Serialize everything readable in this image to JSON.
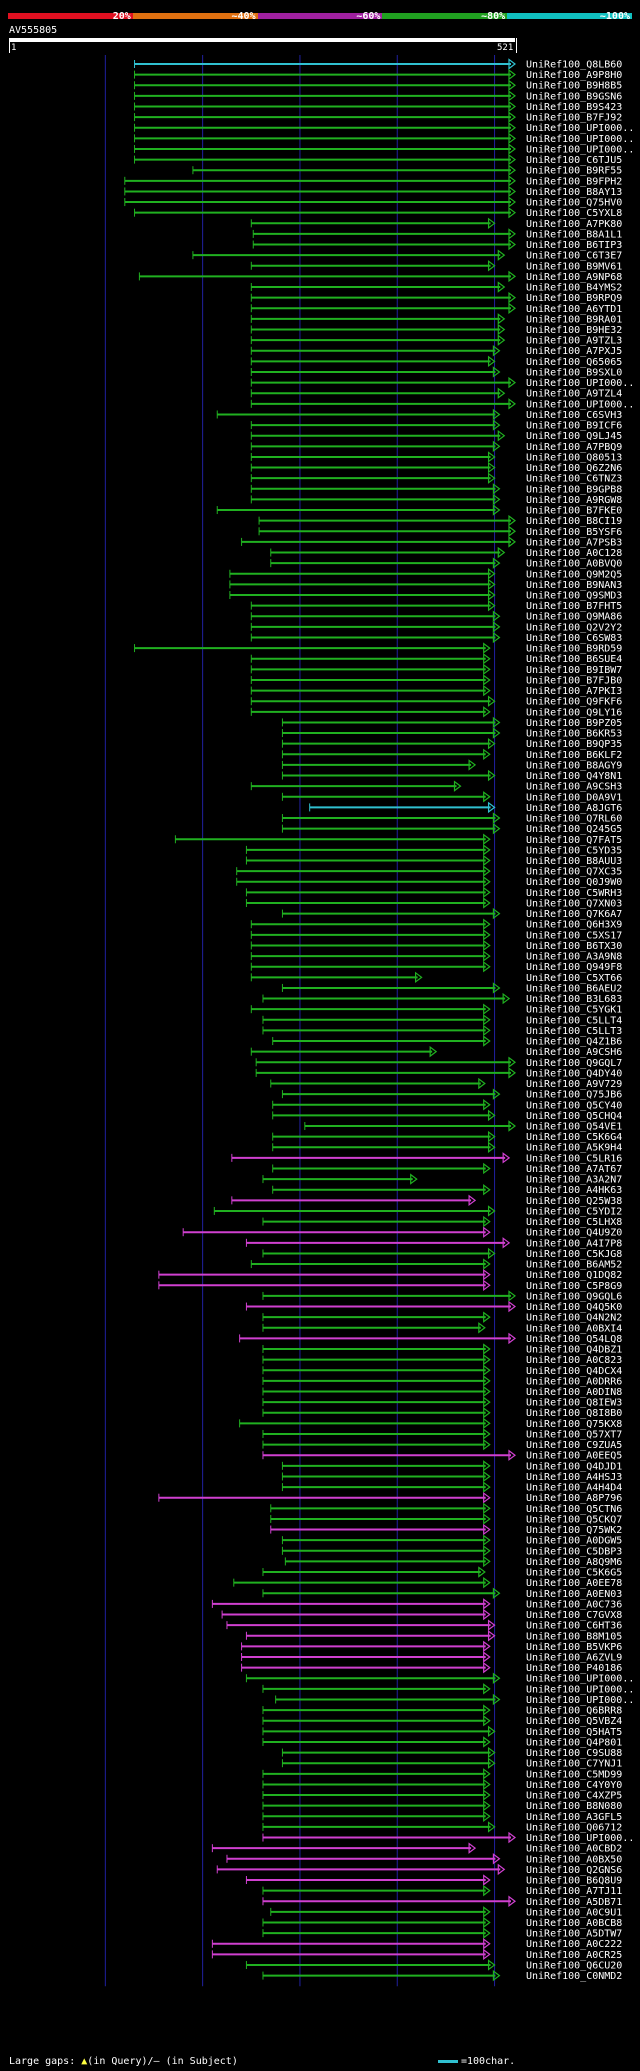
{
  "legend": {
    "labels": [
      "20%",
      "~40%",
      "~60%",
      "~80%",
      "~100%"
    ],
    "colors": [
      "#e01020",
      "#e07010",
      "#a020a0",
      "#20a020",
      "#10c0c0"
    ]
  },
  "query": {
    "name": "AV555805",
    "start": "1",
    "end": "521"
  },
  "footer": {
    "large_gaps": "Large gaps:",
    "gap_symbol": "▲",
    "in_query": "(in Query)/",
    "dash": "–",
    "in_subject": "(in Subject)",
    "scale": "=100char."
  },
  "colors": {
    "cyan": "#30c0d0",
    "green": "#20b020",
    "magenta": "#d040d0",
    "grid": "#2020a0"
  },
  "hits": [
    {
      "label": "UniRef100_Q8LB60",
      "s": 130,
      "e": 521,
      "c": "cyan"
    },
    {
      "label": "UniRef100_A9P8H0",
      "s": 130,
      "e": 521,
      "c": "green"
    },
    {
      "label": "UniRef100_B9H8B5",
      "s": 130,
      "e": 521,
      "c": "green"
    },
    {
      "label": "UniRef100_B9GSN6",
      "s": 130,
      "e": 521,
      "c": "green"
    },
    {
      "label": "UniRef100_B9S423",
      "s": 130,
      "e": 521,
      "c": "green"
    },
    {
      "label": "UniRef100_B7FJ92",
      "s": 130,
      "e": 521,
      "c": "green"
    },
    {
      "label": "UniRef100_UPI000..",
      "s": 130,
      "e": 521,
      "c": "green"
    },
    {
      "label": "UniRef100_UPI000..",
      "s": 130,
      "e": 521,
      "c": "green"
    },
    {
      "label": "UniRef100_UPI000..",
      "s": 130,
      "e": 521,
      "c": "green"
    },
    {
      "label": "UniRef100_C6TJU5",
      "s": 130,
      "e": 521,
      "c": "green"
    },
    {
      "label": "UniRef100_B9RF55",
      "s": 190,
      "e": 521,
      "c": "green"
    },
    {
      "label": "UniRef100_B9FPH2",
      "s": 120,
      "e": 521,
      "c": "green"
    },
    {
      "label": "UniRef100_B8AY13",
      "s": 120,
      "e": 521,
      "c": "green"
    },
    {
      "label": "UniRef100_Q75HV0",
      "s": 120,
      "e": 521,
      "c": "green"
    },
    {
      "label": "UniRef100_C5YXL8",
      "s": 130,
      "e": 521,
      "c": "green"
    },
    {
      "label": "UniRef100_A7PK80",
      "s": 250,
      "e": 500,
      "c": "green"
    },
    {
      "label": "UniRef100_B8A1L1",
      "s": 252,
      "e": 521,
      "c": "green"
    },
    {
      "label": "UniRef100_B6TIP3",
      "s": 252,
      "e": 521,
      "c": "green"
    },
    {
      "label": "UniRef100_C6T3E7",
      "s": 190,
      "e": 510,
      "c": "green"
    },
    {
      "label": "UniRef100_B9MV61",
      "s": 250,
      "e": 500,
      "c": "green"
    },
    {
      "label": "UniRef100_A9NP68",
      "s": 135,
      "e": 521,
      "c": "green"
    },
    {
      "label": "UniRef100_B4YMS2",
      "s": 250,
      "e": 510,
      "c": "green"
    },
    {
      "label": "UniRef100_B9RPQ9",
      "s": 250,
      "e": 521,
      "c": "green"
    },
    {
      "label": "UniRef100_A6YTD1",
      "s": 250,
      "e": 521,
      "c": "green"
    },
    {
      "label": "UniRef100_B9RA01",
      "s": 250,
      "e": 510,
      "c": "green"
    },
    {
      "label": "UniRef100_B9HE32",
      "s": 250,
      "e": 510,
      "c": "green"
    },
    {
      "label": "UniRef100_A9TZL3",
      "s": 250,
      "e": 510,
      "c": "green"
    },
    {
      "label": "UniRef100_A7PXJ5",
      "s": 250,
      "e": 505,
      "c": "green"
    },
    {
      "label": "UniRef100_Q65065",
      "s": 250,
      "e": 500,
      "c": "green"
    },
    {
      "label": "UniRef100_B9SXL0",
      "s": 250,
      "e": 505,
      "c": "green"
    },
    {
      "label": "UniRef100_UPI000..",
      "s": 250,
      "e": 521,
      "c": "green"
    },
    {
      "label": "UniRef100_A9TZL4",
      "s": 250,
      "e": 510,
      "c": "green"
    },
    {
      "label": "UniRef100_UPI000..",
      "s": 250,
      "e": 521,
      "c": "green"
    },
    {
      "label": "UniRef100_C6SVH3",
      "s": 215,
      "e": 505,
      "c": "green"
    },
    {
      "label": "UniRef100_B9ICF6",
      "s": 250,
      "e": 505,
      "c": "green"
    },
    {
      "label": "UniRef100_Q9LJ45",
      "s": 250,
      "e": 510,
      "c": "green"
    },
    {
      "label": "UniRef100_A7PBQ9",
      "s": 250,
      "e": 505,
      "c": "green"
    },
    {
      "label": "UniRef100_Q80513",
      "s": 250,
      "e": 500,
      "c": "green"
    },
    {
      "label": "UniRef100_Q6Z2N6",
      "s": 250,
      "e": 500,
      "c": "green"
    },
    {
      "label": "UniRef100_C6TNZ3",
      "s": 250,
      "e": 500,
      "c": "green"
    },
    {
      "label": "UniRef100_B9GPB8",
      "s": 250,
      "e": 505,
      "c": "green"
    },
    {
      "label": "UniRef100_A9RGW8",
      "s": 250,
      "e": 505,
      "c": "green"
    },
    {
      "label": "UniRef100_B7FKE0",
      "s": 215,
      "e": 505,
      "c": "green"
    },
    {
      "label": "UniRef100_B8CI19",
      "s": 258,
      "e": 521,
      "c": "green"
    },
    {
      "label": "UniRef100_B5YSF6",
      "s": 258,
      "e": 521,
      "c": "green"
    },
    {
      "label": "UniRef100_A7PSB3",
      "s": 240,
      "e": 521,
      "c": "green"
    },
    {
      "label": "UniRef100_A0C128",
      "s": 270,
      "e": 510,
      "c": "green"
    },
    {
      "label": "UniRef100_A0BVQ0",
      "s": 270,
      "e": 505,
      "c": "green"
    },
    {
      "label": "UniRef100_Q9M2Q5",
      "s": 228,
      "e": 500,
      "c": "green"
    },
    {
      "label": "UniRef100_B9NAN3",
      "s": 228,
      "e": 500,
      "c": "green"
    },
    {
      "label": "UniRef100_Q9SMD3",
      "s": 228,
      "e": 500,
      "c": "green"
    },
    {
      "label": "UniRef100_B7FHT5",
      "s": 250,
      "e": 500,
      "c": "green"
    },
    {
      "label": "UniRef100_Q9MA86",
      "s": 250,
      "e": 505,
      "c": "green"
    },
    {
      "label": "UniRef100_Q2V2Y2",
      "s": 250,
      "e": 505,
      "c": "green"
    },
    {
      "label": "UniRef100_C6SW83",
      "s": 250,
      "e": 505,
      "c": "green"
    },
    {
      "label": "UniRef100_B9RD59",
      "s": 130,
      "e": 495,
      "c": "green"
    },
    {
      "label": "UniRef100_B6SUE4",
      "s": 250,
      "e": 495,
      "c": "green"
    },
    {
      "label": "UniRef100_B9IBW7",
      "s": 250,
      "e": 495,
      "c": "green"
    },
    {
      "label": "UniRef100_B7FJB0",
      "s": 250,
      "e": 495,
      "c": "green"
    },
    {
      "label": "UniRef100_A7PKI3",
      "s": 250,
      "e": 495,
      "c": "green"
    },
    {
      "label": "UniRef100_Q9FKF6",
      "s": 250,
      "e": 500,
      "c": "green"
    },
    {
      "label": "UniRef100_Q9LY16",
      "s": 250,
      "e": 495,
      "c": "green"
    },
    {
      "label": "UniRef100_B9PZ05",
      "s": 282,
      "e": 505,
      "c": "green"
    },
    {
      "label": "UniRef100_B6KR53",
      "s": 282,
      "e": 505,
      "c": "green"
    },
    {
      "label": "UniRef100_B9QP35",
      "s": 282,
      "e": 500,
      "c": "green"
    },
    {
      "label": "UniRef100_B6KLF2",
      "s": 282,
      "e": 495,
      "c": "green"
    },
    {
      "label": "UniRef100_B8AGY9",
      "s": 282,
      "e": 480,
      "c": "green"
    },
    {
      "label": "UniRef100_Q4Y8N1",
      "s": 282,
      "e": 500,
      "c": "green"
    },
    {
      "label": "UniRef100_A9CSH3",
      "s": 250,
      "e": 465,
      "c": "green"
    },
    {
      "label": "UniRef100_D0A9V1",
      "s": 282,
      "e": 495,
      "c": "green"
    },
    {
      "label": "UniRef100_A8JGT6",
      "s": 310,
      "e": 500,
      "c": "cyan"
    },
    {
      "label": "UniRef100_Q7RL60",
      "s": 282,
      "e": 505,
      "c": "green"
    },
    {
      "label": "UniRef100_Q245G5",
      "s": 282,
      "e": 505,
      "c": "green"
    },
    {
      "label": "UniRef100_Q7FAT5",
      "s": 172,
      "e": 495,
      "c": "green"
    },
    {
      "label": "UniRef100_C5YD35",
      "s": 245,
      "e": 495,
      "c": "green"
    },
    {
      "label": "UniRef100_B8AUU3",
      "s": 245,
      "e": 495,
      "c": "green"
    },
    {
      "label": "UniRef100_Q7XC35",
      "s": 235,
      "e": 495,
      "c": "green"
    },
    {
      "label": "UniRef100_Q0J9W0",
      "s": 235,
      "e": 495,
      "c": "green"
    },
    {
      "label": "UniRef100_C5WRH3",
      "s": 245,
      "e": 495,
      "c": "green"
    },
    {
      "label": "UniRef100_Q7XN03",
      "s": 245,
      "e": 495,
      "c": "green"
    },
    {
      "label": "UniRef100_Q7K6A7",
      "s": 282,
      "e": 505,
      "c": "green"
    },
    {
      "label": "UniRef100_Q6H3X9",
      "s": 250,
      "e": 495,
      "c": "green"
    },
    {
      "label": "UniRef100_C5XS17",
      "s": 250,
      "e": 495,
      "c": "green"
    },
    {
      "label": "UniRef100_B6TX30",
      "s": 250,
      "e": 495,
      "c": "green"
    },
    {
      "label": "UniRef100_A3A9N8",
      "s": 250,
      "e": 495,
      "c": "green"
    },
    {
      "label": "UniRef100_Q949F8",
      "s": 250,
      "e": 495,
      "c": "green"
    },
    {
      "label": "UniRef100_C5XT66",
      "s": 250,
      "e": 425,
      "c": "green"
    },
    {
      "label": "UniRef100_B6AEU2",
      "s": 282,
      "e": 505,
      "c": "green"
    },
    {
      "label": "UniRef100_B3L683",
      "s": 262,
      "e": 515,
      "c": "green"
    },
    {
      "label": "UniRef100_C5YGK1",
      "s": 250,
      "e": 495,
      "c": "green"
    },
    {
      "label": "UniRef100_C5LLT4",
      "s": 262,
      "e": 495,
      "c": "green"
    },
    {
      "label": "UniRef100_C5LLT3",
      "s": 262,
      "e": 495,
      "c": "green"
    },
    {
      "label": "UniRef100_Q4Z1B6",
      "s": 272,
      "e": 495,
      "c": "green"
    },
    {
      "label": "UniRef100_A9CSH6",
      "s": 250,
      "e": 440,
      "c": "green"
    },
    {
      "label": "UniRef100_Q9GQL7",
      "s": 255,
      "e": 521,
      "c": "green"
    },
    {
      "label": "UniRef100_Q4DY40",
      "s": 255,
      "e": 521,
      "c": "green"
    },
    {
      "label": "UniRef100_A9V729",
      "s": 270,
      "e": 490,
      "c": "green"
    },
    {
      "label": "UniRef100_Q75JB6",
      "s": 282,
      "e": 505,
      "c": "green"
    },
    {
      "label": "UniRef100_Q5CY40",
      "s": 272,
      "e": 495,
      "c": "green"
    },
    {
      "label": "UniRef100_Q5CHQ4",
      "s": 272,
      "e": 500,
      "c": "green"
    },
    {
      "label": "UniRef100_Q54VE1",
      "s": 305,
      "e": 521,
      "c": "green"
    },
    {
      "label": "UniRef100_C5K6G4",
      "s": 272,
      "e": 500,
      "c": "green"
    },
    {
      "label": "UniRef100_A5K9H4",
      "s": 272,
      "e": 500,
      "c": "green"
    },
    {
      "label": "UniRef100_C5LR16",
      "s": 230,
      "e": 515,
      "c": "magenta"
    },
    {
      "label": "UniRef100_A7AT67",
      "s": 272,
      "e": 495,
      "c": "green"
    },
    {
      "label": "UniRef100_A3A2N7",
      "s": 262,
      "e": 420,
      "c": "green"
    },
    {
      "label": "UniRef100_A4HK63",
      "s": 272,
      "e": 495,
      "c": "green"
    },
    {
      "label": "UniRef100_Q25W38",
      "s": 230,
      "e": 480,
      "c": "magenta"
    },
    {
      "label": "UniRef100_C5YDI2",
      "s": 212,
      "e": 500,
      "c": "green"
    },
    {
      "label": "UniRef100_C5LHX8",
      "s": 262,
      "e": 495,
      "c": "green"
    },
    {
      "label": "UniRef100_Q4U9Z0",
      "s": 180,
      "e": 495,
      "c": "magenta"
    },
    {
      "label": "UniRef100_A4I7P8",
      "s": 245,
      "e": 515,
      "c": "magenta"
    },
    {
      "label": "UniRef100_C5KJG8",
      "s": 262,
      "e": 500,
      "c": "green"
    },
    {
      "label": "UniRef100_B6AM52",
      "s": 250,
      "e": 495,
      "c": "green"
    },
    {
      "label": "UniRef100_Q1DQ82",
      "s": 155,
      "e": 495,
      "c": "magenta"
    },
    {
      "label": "UniRef100_C5P8G9",
      "s": 155,
      "e": 495,
      "c": "magenta"
    },
    {
      "label": "UniRef100_Q9GQL6",
      "s": 262,
      "e": 521,
      "c": "green"
    },
    {
      "label": "UniRef100_Q4Q5K0",
      "s": 245,
      "e": 521,
      "c": "magenta"
    },
    {
      "label": "UniRef100_Q4N2N2",
      "s": 262,
      "e": 495,
      "c": "green"
    },
    {
      "label": "UniRef100_A0BXI4",
      "s": 262,
      "e": 490,
      "c": "green"
    },
    {
      "label": "UniRef100_Q54LQ8",
      "s": 238,
      "e": 521,
      "c": "magenta"
    },
    {
      "label": "UniRef100_Q4DBZ1",
      "s": 262,
      "e": 495,
      "c": "green"
    },
    {
      "label": "UniRef100_A0C823",
      "s": 262,
      "e": 495,
      "c": "green"
    },
    {
      "label": "UniRef100_Q4DCX4",
      "s": 262,
      "e": 495,
      "c": "green"
    },
    {
      "label": "UniRef100_A0DRR6",
      "s": 262,
      "e": 495,
      "c": "green"
    },
    {
      "label": "UniRef100_A0DIN8",
      "s": 262,
      "e": 495,
      "c": "green"
    },
    {
      "label": "UniRef100_Q8IEW3",
      "s": 262,
      "e": 495,
      "c": "green"
    },
    {
      "label": "UniRef100_Q8I8B0",
      "s": 262,
      "e": 495,
      "c": "green"
    },
    {
      "label": "UniRef100_Q75KX8",
      "s": 238,
      "e": 495,
      "c": "green"
    },
    {
      "label": "UniRef100_Q57XT7",
      "s": 262,
      "e": 495,
      "c": "green"
    },
    {
      "label": "UniRef100_C9ZUA5",
      "s": 262,
      "e": 495,
      "c": "green"
    },
    {
      "label": "UniRef100_A0EEQ5",
      "s": 262,
      "e": 521,
      "c": "magenta"
    },
    {
      "label": "UniRef100_Q4DJD1",
      "s": 282,
      "e": 495,
      "c": "green"
    },
    {
      "label": "UniRef100_A4HSJ3",
      "s": 282,
      "e": 495,
      "c": "green"
    },
    {
      "label": "UniRef100_A4H4D4",
      "s": 282,
      "e": 495,
      "c": "green"
    },
    {
      "label": "UniRef100_A8P796",
      "s": 155,
      "e": 495,
      "c": "magenta"
    },
    {
      "label": "UniRef100_Q5CTN6",
      "s": 270,
      "e": 495,
      "c": "green"
    },
    {
      "label": "UniRef100_Q5CKQ7",
      "s": 270,
      "e": 495,
      "c": "green"
    },
    {
      "label": "UniRef100_Q75WK2",
      "s": 270,
      "e": 495,
      "c": "magenta"
    },
    {
      "label": "UniRef100_A0DGW5",
      "s": 282,
      "e": 495,
      "c": "green"
    },
    {
      "label": "UniRef100_C5DBP3",
      "s": 282,
      "e": 495,
      "c": "green"
    },
    {
      "label": "UniRef100_A8Q9M6",
      "s": 285,
      "e": 495,
      "c": "green"
    },
    {
      "label": "UniRef100_C5K6G5",
      "s": 262,
      "e": 490,
      "c": "green"
    },
    {
      "label": "UniRef100_A0EE78",
      "s": 232,
      "e": 495,
      "c": "green"
    },
    {
      "label": "UniRef100_A0EN03",
      "s": 262,
      "e": 505,
      "c": "green"
    },
    {
      "label": "UniRef100_A0C736",
      "s": 210,
      "e": 495,
      "c": "magenta"
    },
    {
      "label": "UniRef100_C7GVX8",
      "s": 220,
      "e": 495,
      "c": "magenta"
    },
    {
      "label": "UniRef100_C6HT36",
      "s": 225,
      "e": 500,
      "c": "magenta"
    },
    {
      "label": "UniRef100_B8M105",
      "s": 245,
      "e": 500,
      "c": "magenta"
    },
    {
      "label": "UniRef100_B5VKP6",
      "s": 240,
      "e": 495,
      "c": "magenta"
    },
    {
      "label": "UniRef100_A6ZVL9",
      "s": 240,
      "e": 495,
      "c": "magenta"
    },
    {
      "label": "UniRef100_P40186",
      "s": 240,
      "e": 495,
      "c": "magenta"
    },
    {
      "label": "UniRef100_UPI000..",
      "s": 245,
      "e": 505,
      "c": "green"
    },
    {
      "label": "UniRef100_UPI000..",
      "s": 262,
      "e": 495,
      "c": "green"
    },
    {
      "label": "UniRef100_UPI000..",
      "s": 275,
      "e": 505,
      "c": "green"
    },
    {
      "label": "UniRef100_Q6BRR8",
      "s": 262,
      "e": 495,
      "c": "green"
    },
    {
      "label": "UniRef100_Q5VBZ4",
      "s": 262,
      "e": 495,
      "c": "green"
    },
    {
      "label": "UniRef100_Q5HAT5",
      "s": 262,
      "e": 500,
      "c": "green"
    },
    {
      "label": "UniRef100_Q4P801",
      "s": 262,
      "e": 495,
      "c": "green"
    },
    {
      "label": "UniRef100_C9SU88",
      "s": 282,
      "e": 500,
      "c": "green"
    },
    {
      "label": "UniRef100_C7YNJ1",
      "s": 282,
      "e": 500,
      "c": "green"
    },
    {
      "label": "UniRef100_C5MD99",
      "s": 262,
      "e": 495,
      "c": "green"
    },
    {
      "label": "UniRef100_C4Y0Y0",
      "s": 262,
      "e": 495,
      "c": "green"
    },
    {
      "label": "UniRef100_C4XZP5",
      "s": 262,
      "e": 495,
      "c": "green"
    },
    {
      "label": "UniRef100_B8N080",
      "s": 262,
      "e": 495,
      "c": "green"
    },
    {
      "label": "UniRef100_A3GFL5",
      "s": 262,
      "e": 495,
      "c": "green"
    },
    {
      "label": "UniRef100_Q06712",
      "s": 262,
      "e": 500,
      "c": "green"
    },
    {
      "label": "UniRef100_UPI000..",
      "s": 262,
      "e": 521,
      "c": "magenta"
    },
    {
      "label": "UniRef100_A0CBD2",
      "s": 210,
      "e": 480,
      "c": "magenta"
    },
    {
      "label": "UniRef100_A0BX50",
      "s": 225,
      "e": 505,
      "c": "magenta"
    },
    {
      "label": "UniRef100_Q2GNS6",
      "s": 215,
      "e": 510,
      "c": "magenta"
    },
    {
      "label": "UniRef100_B6Q8U9",
      "s": 245,
      "e": 495,
      "c": "magenta"
    },
    {
      "label": "UniRef100_A7TJ11",
      "s": 262,
      "e": 495,
      "c": "green"
    },
    {
      "label": "UniRef100_A5DB71",
      "s": 262,
      "e": 521,
      "c": "magenta"
    },
    {
      "label": "UniRef100_A0C9U1",
      "s": 270,
      "e": 495,
      "c": "green"
    },
    {
      "label": "UniRef100_A0BCB8",
      "s": 262,
      "e": 495,
      "c": "green"
    },
    {
      "label": "UniRef100_A5DTW7",
      "s": 262,
      "e": 495,
      "c": "green"
    },
    {
      "label": "UniRef100_A0C222",
      "s": 210,
      "e": 495,
      "c": "magenta"
    },
    {
      "label": "UniRef100_A0CR25",
      "s": 210,
      "e": 495,
      "c": "magenta"
    },
    {
      "label": "UniRef100_Q6CU20",
      "s": 245,
      "e": 500,
      "c": "green"
    },
    {
      "label": "UniRef100_C0NMD2",
      "s": 262,
      "e": 505,
      "c": "green"
    }
  ]
}
